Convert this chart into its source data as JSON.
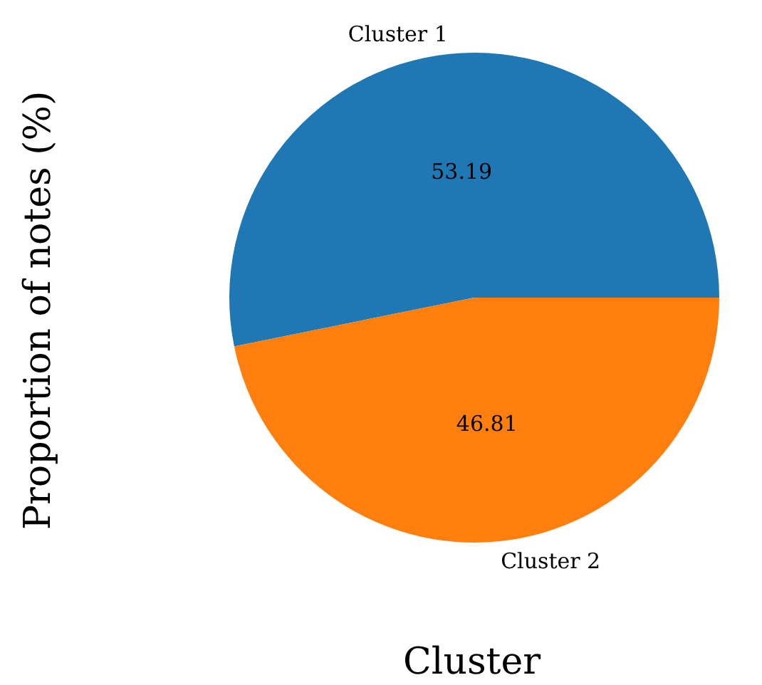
{
  "chart_data": {
    "type": "pie",
    "xlabel": "Cluster",
    "ylabel": "Proportion of notes (%)",
    "categories": [
      "Cluster 1",
      "Cluster 2"
    ],
    "values": [
      53.19,
      46.81
    ],
    "colors": [
      "#1f77b4",
      "#ff7f0e"
    ],
    "data_labels": true
  }
}
